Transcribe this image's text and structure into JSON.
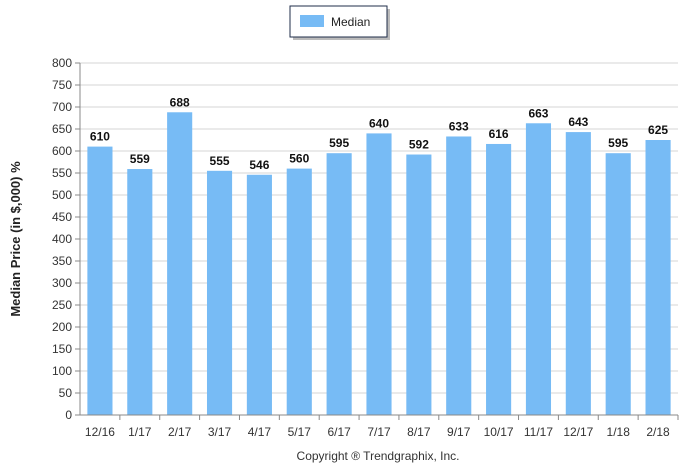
{
  "chart_data": {
    "type": "bar",
    "title": "",
    "xlabel": "",
    "ylabel": "Median Price (in $,000) %",
    "ylim": [
      0,
      800
    ],
    "ytick_step": 50,
    "grid": true,
    "legend_position": "top-center",
    "categories": [
      "12/16",
      "1/17",
      "2/17",
      "3/17",
      "4/17",
      "5/17",
      "6/17",
      "7/17",
      "8/17",
      "9/17",
      "10/17",
      "11/17",
      "12/17",
      "1/18",
      "2/18"
    ],
    "series": [
      {
        "name": "Median",
        "color": "#77bbf5",
        "values": [
          610,
          559,
          688,
          555,
          546,
          560,
          595,
          640,
          592,
          633,
          616,
          663,
          643,
          595,
          625
        ],
        "labels": [
          "610",
          "559",
          "688",
          "555",
          "546",
          "560",
          "595",
          "640",
          "592",
          "633",
          "616",
          "663",
          "643",
          "595",
          "625"
        ]
      }
    ]
  },
  "footer": {
    "copyright": "Copyright ® Trendgraphix, Inc."
  }
}
